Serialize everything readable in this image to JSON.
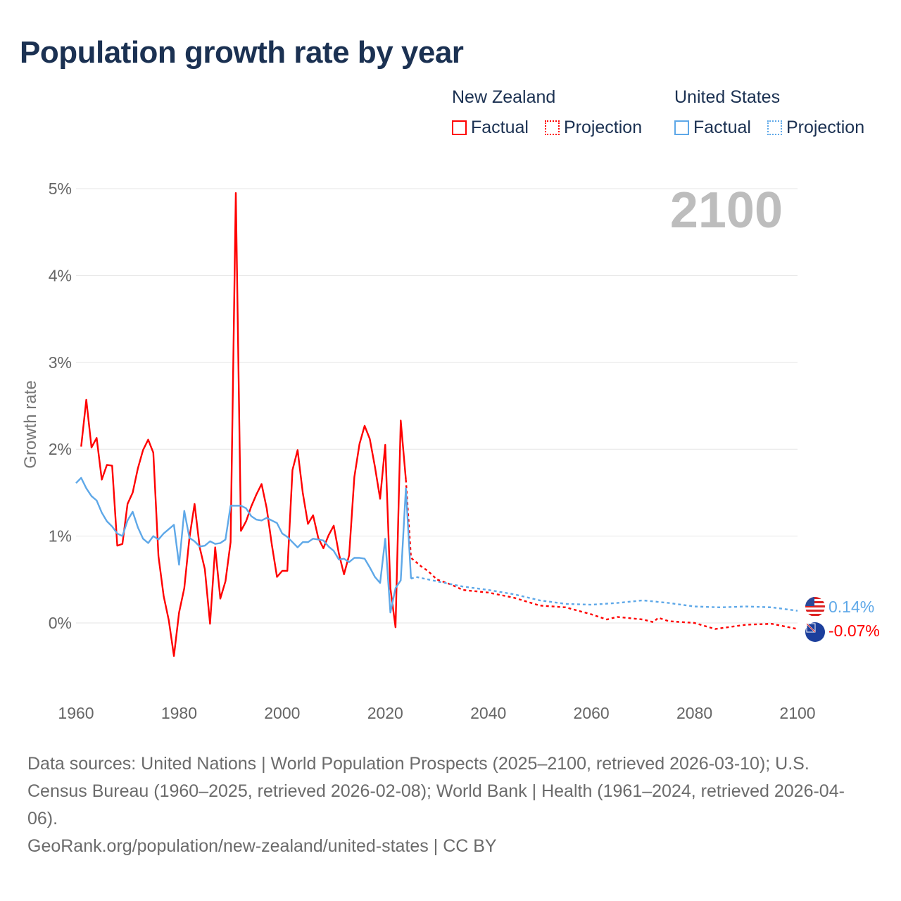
{
  "title": "Population growth rate by year",
  "legend": {
    "groups": [
      {
        "name": "New Zealand",
        "factual": "Factual",
        "projection": "Projection",
        "color": "#ff0000"
      },
      {
        "name": "United States",
        "factual": "Factual",
        "projection": "Projection",
        "color": "#5ea8e8"
      }
    ]
  },
  "current_year_label": "2100",
  "end_labels": {
    "us": "0.14%",
    "nz": "-0.07%"
  },
  "footer": {
    "sources": "Data sources: United Nations | World Population Prospects (2025–2100, retrieved 2026-03-10); U.S. Census Bureau (1960–2025, retrieved 2026-02-08); World Bank | Health (1961–2024, retrieved 2026-04-06).",
    "credit": "GeoRank.org/population/new-zealand/united-states | CC BY"
  },
  "chart_data": {
    "type": "line",
    "title": "Population growth rate by year",
    "xlabel": "",
    "ylabel": "Growth rate",
    "xlim": [
      1960,
      2100
    ],
    "ylim": [
      -0.8,
      5.2
    ],
    "xticks": [
      1960,
      1980,
      2000,
      2020,
      2040,
      2060,
      2080,
      2100
    ],
    "xtick_labels": [
      "1960",
      "1980",
      "2000",
      "2020",
      "2040",
      "2060",
      "2080",
      "2100"
    ],
    "yticks": [
      0,
      1,
      2,
      3,
      4,
      5
    ],
    "ytick_labels": [
      "0%",
      "1%",
      "2%",
      "3%",
      "4%",
      "5%"
    ],
    "grid": true,
    "legend_position": "top-right",
    "series": [
      {
        "name": "New Zealand Factual",
        "color": "#ff0000",
        "dash": false,
        "x": [
          1961,
          1962,
          1963,
          1964,
          1965,
          1966,
          1967,
          1968,
          1969,
          1970,
          1971,
          1972,
          1973,
          1974,
          1975,
          1976,
          1977,
          1978,
          1979,
          1980,
          1981,
          1982,
          1983,
          1984,
          1985,
          1986,
          1987,
          1988,
          1989,
          1990,
          1991,
          1992,
          1993,
          1994,
          1995,
          1996,
          1997,
          1998,
          1999,
          2000,
          2001,
          2002,
          2003,
          2004,
          2005,
          2006,
          2007,
          2008,
          2009,
          2010,
          2011,
          2012,
          2013,
          2014,
          2015,
          2016,
          2017,
          2018,
          2019,
          2020,
          2021,
          2022,
          2023,
          2024
        ],
        "y": [
          2.03,
          2.57,
          2.02,
          2.13,
          1.65,
          1.82,
          1.81,
          0.89,
          0.91,
          1.37,
          1.5,
          1.78,
          1.99,
          2.11,
          1.96,
          0.77,
          0.31,
          0.03,
          -0.38,
          0.12,
          0.4,
          0.98,
          1.37,
          0.87,
          0.62,
          -0.01,
          0.87,
          0.28,
          0.48,
          0.93,
          4.95,
          1.06,
          1.17,
          1.34,
          1.48,
          1.6,
          1.32,
          0.9,
          0.53,
          0.6,
          0.6,
          1.76,
          1.99,
          1.5,
          1.14,
          1.24,
          0.98,
          0.86,
          1.01,
          1.12,
          0.8,
          0.56,
          0.78,
          1.68,
          2.06,
          2.27,
          2.12,
          1.8,
          1.43,
          2.05,
          0.4,
          -0.05,
          2.33,
          1.65
        ]
      },
      {
        "name": "New Zealand Projection",
        "color": "#ff0000",
        "dash": true,
        "x": [
          2024,
          2025,
          2026,
          2027,
          2028,
          2029,
          2030,
          2032,
          2034,
          2035,
          2040,
          2045,
          2050,
          2055,
          2060,
          2063,
          2065,
          2070,
          2072,
          2073,
          2075,
          2080,
          2084,
          2090,
          2095,
          2100
        ],
        "y": [
          1.65,
          0.75,
          0.7,
          0.65,
          0.61,
          0.56,
          0.5,
          0.46,
          0.41,
          0.38,
          0.35,
          0.29,
          0.2,
          0.18,
          0.1,
          0.04,
          0.07,
          0.04,
          0.01,
          0.06,
          0.02,
          0.0,
          -0.07,
          -0.02,
          -0.01,
          -0.07
        ]
      },
      {
        "name": "United States Factual",
        "color": "#5ea8e8",
        "dash": false,
        "x": [
          1960,
          1961,
          1962,
          1963,
          1964,
          1965,
          1966,
          1967,
          1968,
          1969,
          1970,
          1971,
          1972,
          1973,
          1974,
          1975,
          1976,
          1977,
          1978,
          1979,
          1980,
          1981,
          1982,
          1983,
          1984,
          1985,
          1986,
          1987,
          1988,
          1989,
          1990,
          1991,
          1992,
          1993,
          1994,
          1995,
          1996,
          1997,
          1998,
          1999,
          2000,
          2001,
          2002,
          2003,
          2004,
          2005,
          2006,
          2007,
          2008,
          2009,
          2010,
          2011,
          2012,
          2013,
          2014,
          2015,
          2016,
          2017,
          2018,
          2019,
          2020,
          2021,
          2022,
          2023,
          2024,
          2025
        ],
        "y": [
          1.61,
          1.67,
          1.55,
          1.46,
          1.41,
          1.27,
          1.17,
          1.11,
          1.03,
          1.0,
          1.18,
          1.28,
          1.1,
          0.97,
          0.92,
          1.0,
          0.96,
          1.03,
          1.08,
          1.13,
          0.67,
          1.29,
          0.98,
          0.94,
          0.88,
          0.89,
          0.94,
          0.91,
          0.92,
          0.96,
          1.35,
          1.35,
          1.35,
          1.32,
          1.23,
          1.19,
          1.18,
          1.21,
          1.18,
          1.15,
          1.03,
          0.99,
          0.93,
          0.87,
          0.93,
          0.93,
          0.97,
          0.96,
          0.95,
          0.88,
          0.83,
          0.73,
          0.74,
          0.7,
          0.75,
          0.75,
          0.74,
          0.64,
          0.53,
          0.46,
          0.97,
          0.12,
          0.4,
          0.49,
          1.55,
          0.51
        ]
      },
      {
        "name": "United States Projection",
        "color": "#5ea8e8",
        "dash": true,
        "x": [
          2025,
          2026,
          2030,
          2035,
          2040,
          2045,
          2050,
          2055,
          2060,
          2065,
          2070,
          2075,
          2080,
          2085,
          2090,
          2095,
          2100
        ],
        "y": [
          0.51,
          0.53,
          0.48,
          0.42,
          0.38,
          0.33,
          0.26,
          0.22,
          0.21,
          0.23,
          0.26,
          0.23,
          0.19,
          0.18,
          0.19,
          0.18,
          0.14
        ]
      }
    ]
  }
}
